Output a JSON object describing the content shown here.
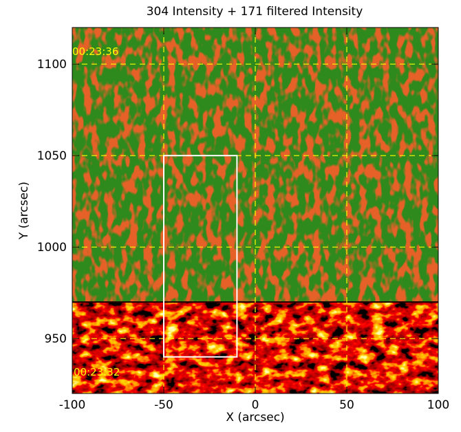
{
  "chart_data": {
    "type": "image",
    "title": "304 Intensity + 171 filtered Intensity",
    "xlabel": "X (arcsec)",
    "ylabel": "Y (arcsec)",
    "xlim": [
      -100,
      100
    ],
    "ylim": [
      920,
      1120
    ],
    "xticks": [
      -100,
      -50,
      0,
      50,
      100
    ],
    "yticks": [
      950,
      1000,
      1050,
      1100
    ],
    "grid": true,
    "grid_color": "#ffff00",
    "region_boundary_y": 970,
    "box": {
      "xlim": [
        -50,
        -10
      ],
      "ylim": [
        940,
        1050
      ],
      "color": "#ffffff"
    },
    "annotations": [
      "00:23:36",
      "00:23:32"
    ]
  }
}
